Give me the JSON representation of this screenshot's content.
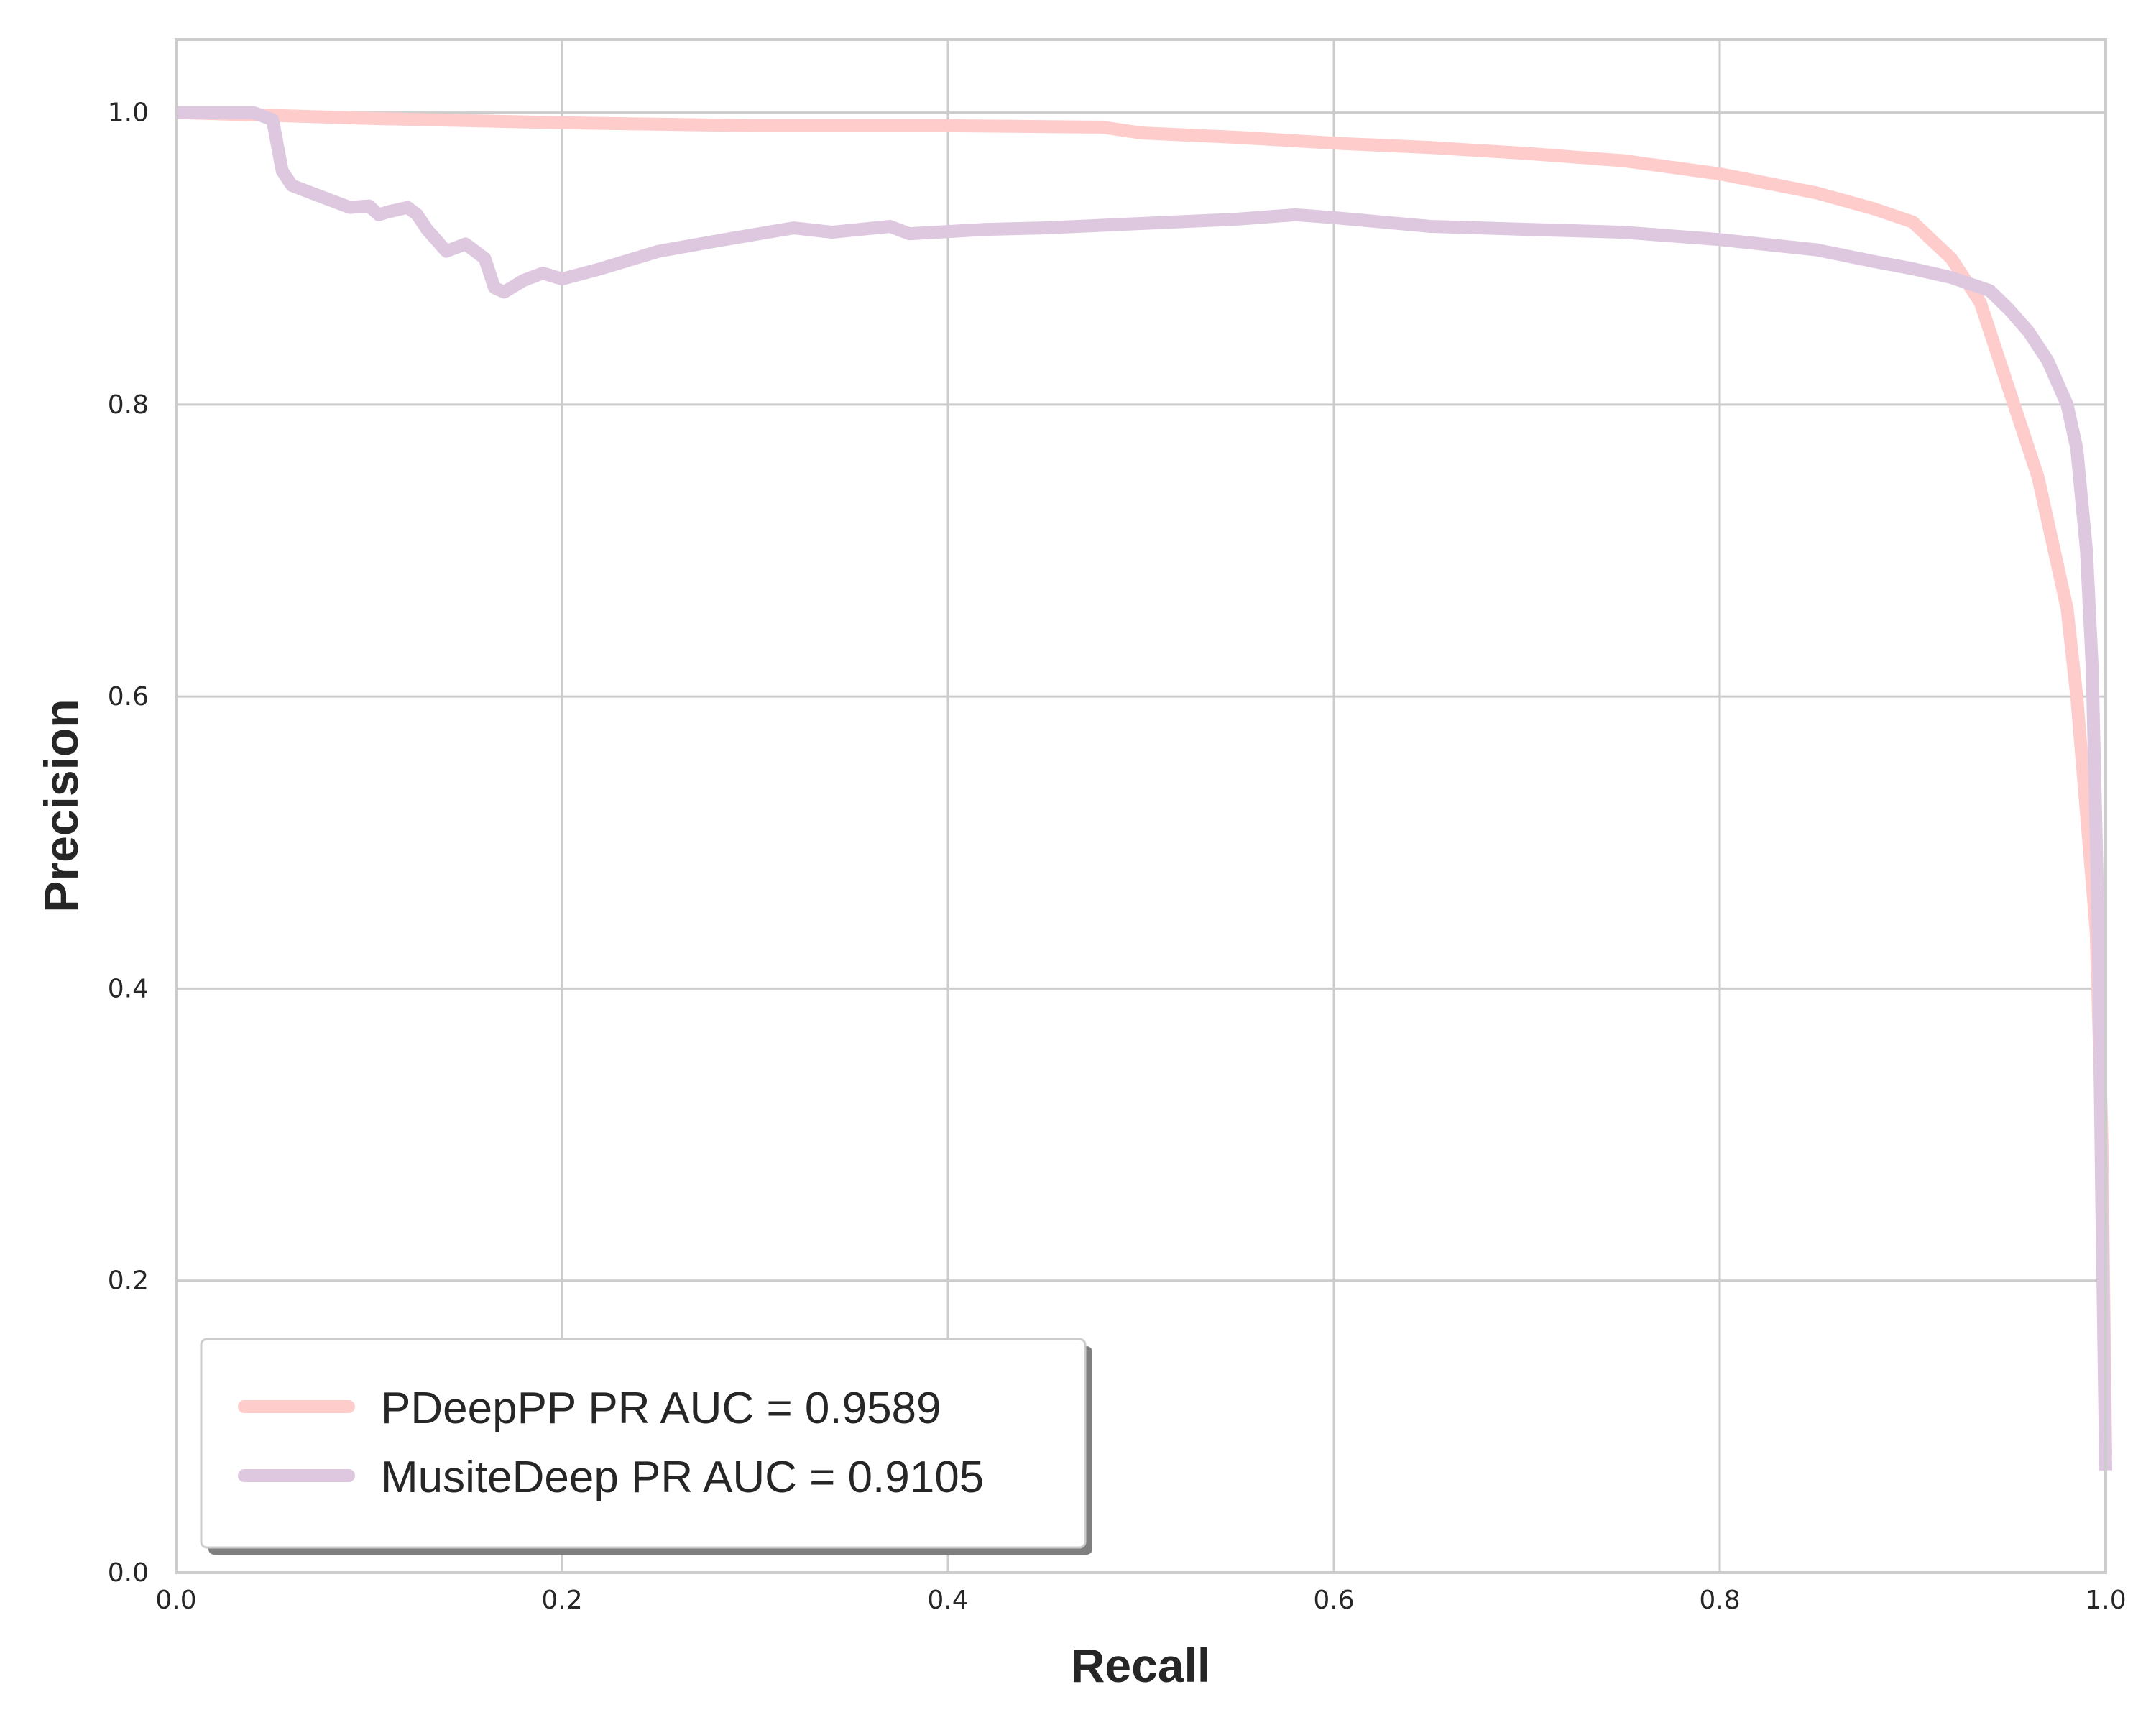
{
  "chart_data": {
    "type": "line",
    "xlabel": "Recall",
    "ylabel": "Precision",
    "xlim": [
      0,
      1
    ],
    "ylim": [
      0,
      1.05
    ],
    "xticks": [
      "0.0",
      "0.2",
      "0.4",
      "0.6",
      "0.8",
      "1.0"
    ],
    "yticks": [
      "0.0",
      "0.2",
      "0.4",
      "0.6",
      "0.8",
      "1.0"
    ],
    "grid": true,
    "legend_position": "lower-left",
    "series": [
      {
        "name": "PDeepPP PR AUC = 0.9589",
        "color": "#ffcccc",
        "x": [
          0.0,
          0.05,
          0.1,
          0.2,
          0.3,
          0.4,
          0.48,
          0.5,
          0.55,
          0.6,
          0.65,
          0.7,
          0.75,
          0.8,
          0.85,
          0.88,
          0.9,
          0.92,
          0.935,
          0.945,
          0.955,
          0.965,
          0.97,
          0.975,
          0.98,
          0.985,
          0.99,
          0.995,
          0.998,
          1.0
        ],
        "y": [
          1.0,
          0.998,
          0.996,
          0.993,
          0.991,
          0.991,
          0.99,
          0.986,
          0.983,
          0.979,
          0.976,
          0.972,
          0.967,
          0.958,
          0.945,
          0.934,
          0.925,
          0.9,
          0.87,
          0.83,
          0.79,
          0.75,
          0.72,
          0.69,
          0.66,
          0.6,
          0.52,
          0.44,
          0.3,
          0.08
        ]
      },
      {
        "name": "MusiteDeep PR AUC = 0.9105",
        "color": "#dec8e0",
        "x": [
          0.0,
          0.04,
          0.05,
          0.055,
          0.06,
          0.07,
          0.08,
          0.09,
          0.1,
          0.105,
          0.11,
          0.12,
          0.125,
          0.13,
          0.14,
          0.15,
          0.16,
          0.165,
          0.17,
          0.18,
          0.19,
          0.2,
          0.22,
          0.25,
          0.28,
          0.32,
          0.34,
          0.37,
          0.38,
          0.42,
          0.45,
          0.5,
          0.55,
          0.58,
          0.6,
          0.65,
          0.7,
          0.75,
          0.8,
          0.85,
          0.88,
          0.9,
          0.92,
          0.94,
          0.95,
          0.96,
          0.97,
          0.98,
          0.985,
          0.99,
          0.993,
          0.996,
          0.998,
          1.0
        ],
        "y": [
          1.0,
          1.0,
          0.995,
          0.96,
          0.95,
          0.945,
          0.94,
          0.935,
          0.936,
          0.93,
          0.932,
          0.935,
          0.93,
          0.92,
          0.905,
          0.91,
          0.9,
          0.88,
          0.877,
          0.885,
          0.89,
          0.886,
          0.893,
          0.905,
          0.912,
          0.921,
          0.918,
          0.922,
          0.917,
          0.92,
          0.921,
          0.924,
          0.927,
          0.93,
          0.928,
          0.922,
          0.92,
          0.918,
          0.913,
          0.906,
          0.898,
          0.893,
          0.887,
          0.878,
          0.865,
          0.85,
          0.83,
          0.8,
          0.77,
          0.7,
          0.62,
          0.45,
          0.25,
          0.07
        ]
      }
    ]
  }
}
